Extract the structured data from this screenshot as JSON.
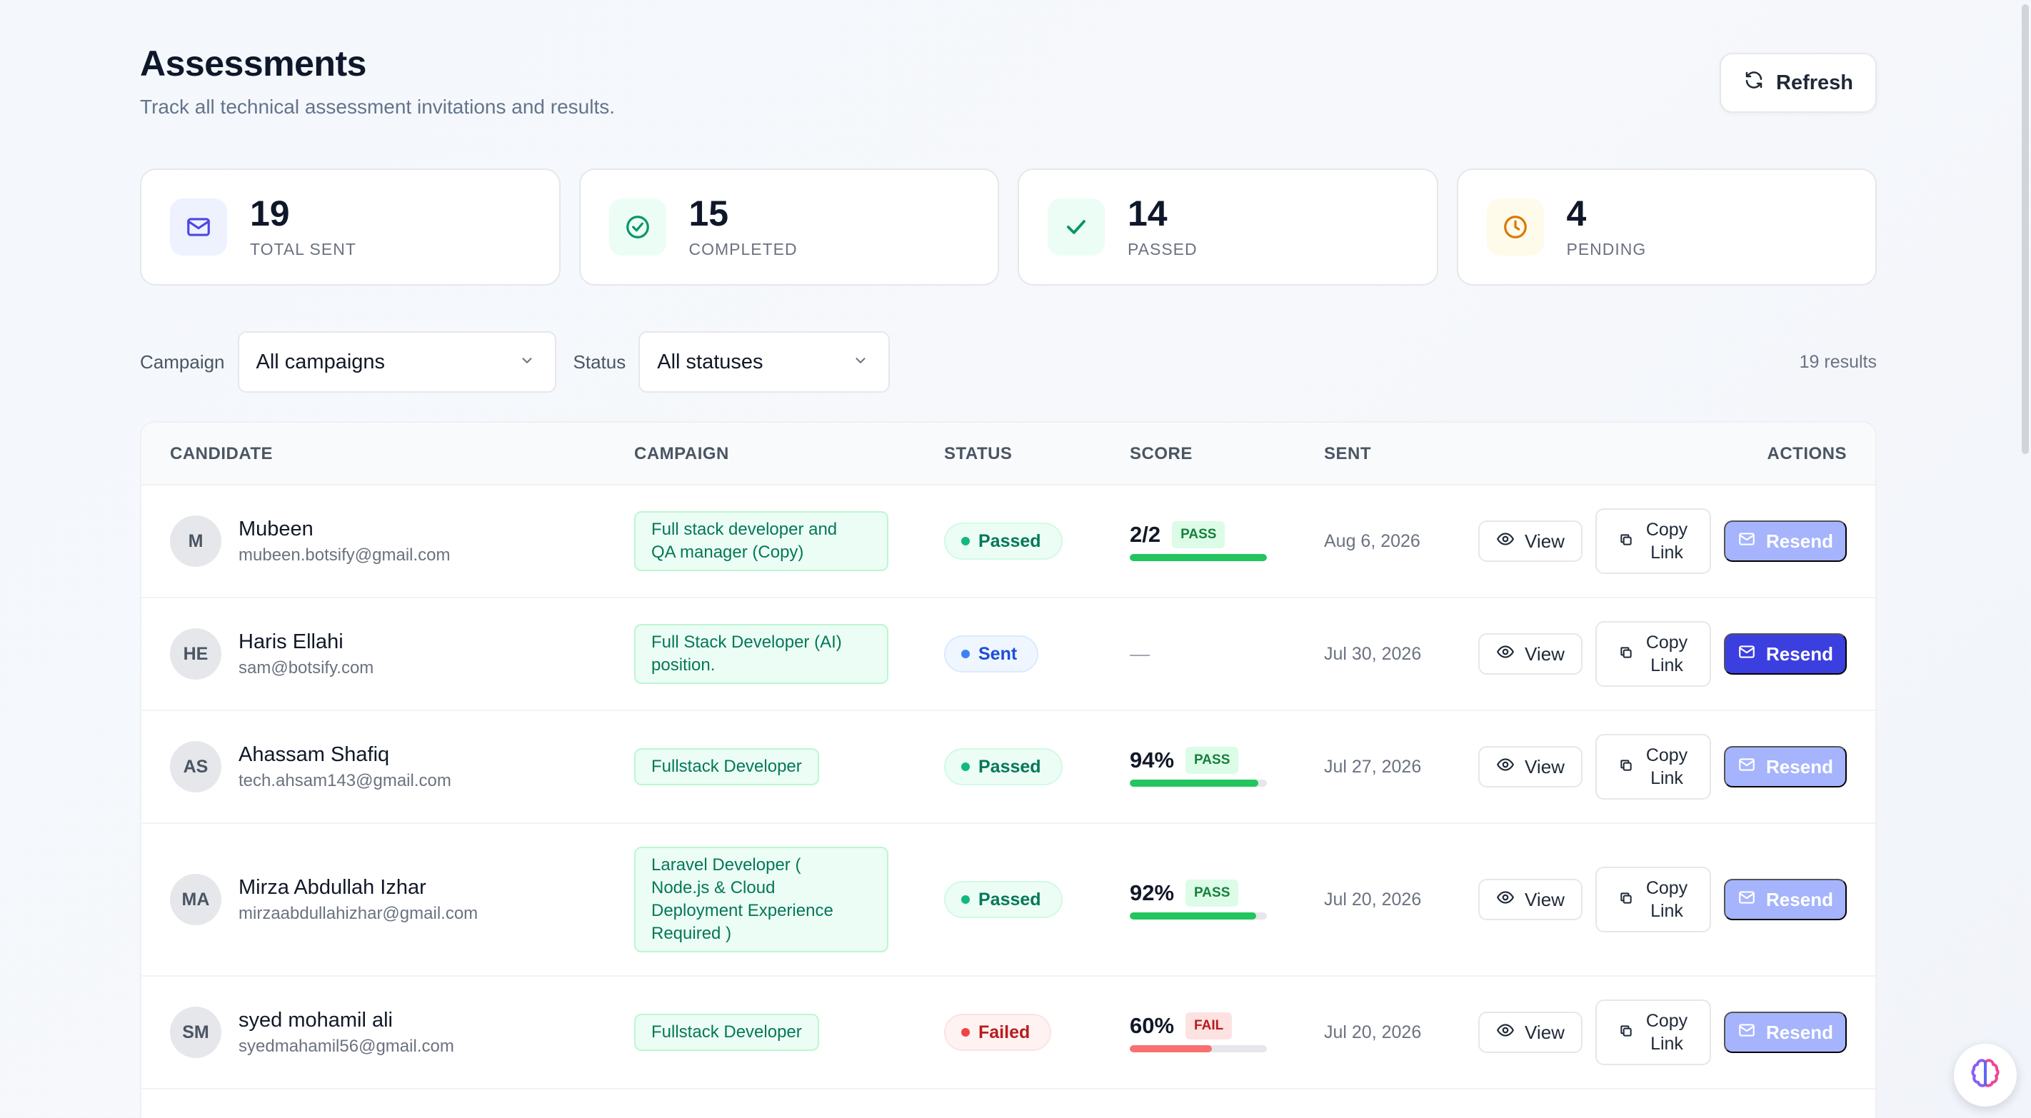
{
  "header": {
    "title": "Assessments",
    "subtitle": "Track all technical assessment invitations and results.",
    "refresh_label": "Refresh"
  },
  "stats": [
    {
      "value": "19",
      "label": "TOTAL SENT",
      "icon": "mail-icon",
      "color": "#4f46e5",
      "bg": "#eef2ff"
    },
    {
      "value": "15",
      "label": "COMPLETED",
      "icon": "check-circle-icon",
      "color": "#059669",
      "bg": "#ecfdf5"
    },
    {
      "value": "14",
      "label": "PASSED",
      "icon": "check-icon",
      "color": "#059669",
      "bg": "#ecfdf5"
    },
    {
      "value": "4",
      "label": "PENDING",
      "icon": "clock-icon",
      "color": "#d97706",
      "bg": "#fffbeb"
    }
  ],
  "filters": {
    "campaign_label": "Campaign",
    "campaign_value": "All campaigns",
    "status_label": "Status",
    "status_value": "All statuses",
    "results": "19 results"
  },
  "table": {
    "headers": {
      "candidate": "CANDIDATE",
      "campaign": "CAMPAIGN",
      "status": "STATUS",
      "score": "SCORE",
      "sent": "SENT",
      "actions": "ACTIONS"
    },
    "actions": {
      "view": "View",
      "copy_1": "Copy",
      "copy_2": "Link",
      "resend": "Resend"
    },
    "rows": [
      {
        "initials": "M",
        "name": "Mubeen",
        "email": "mubeen.botsify@gmail.com",
        "campaign_lines": [
          "Full stack developer and",
          "QA manager (Copy)"
        ],
        "status": "Passed",
        "score": "2/2",
        "badge": "PASS",
        "fill": 1.0,
        "sent": "Aug 6, 2026",
        "resend_active": false
      },
      {
        "initials": "HE",
        "name": "Haris Ellahi",
        "email": "sam@botsify.com",
        "campaign_lines": [
          "Full Stack Developer (AI)",
          "position."
        ],
        "status": "Sent",
        "score": "—",
        "badge": "",
        "fill": 0,
        "sent": "Jul 30, 2026",
        "resend_active": true
      },
      {
        "initials": "AS",
        "name": "Ahassam Shafiq",
        "email": "tech.ahsam143@gmail.com",
        "campaign_lines": [
          "Fullstack Developer"
        ],
        "status": "Passed",
        "score": "94%",
        "badge": "PASS",
        "fill": 0.94,
        "sent": "Jul 27, 2026",
        "resend_active": false
      },
      {
        "initials": "MA",
        "name": "Mirza Abdullah Izhar",
        "email": "mirzaabdullahizhar@gmail.com",
        "campaign_lines": [
          "Laravel Developer (",
          "Node.js & Cloud",
          "Deployment Experience",
          "Required )"
        ],
        "status": "Passed",
        "score": "92%",
        "badge": "PASS",
        "fill": 0.92,
        "sent": "Jul 20, 2026",
        "resend_active": false
      },
      {
        "initials": "SM",
        "name": "syed mohamil ali",
        "email": "syedmahamil56@gmail.com",
        "campaign_lines": [
          "Fullstack Developer"
        ],
        "status": "Failed",
        "score": "60%",
        "badge": "FAIL",
        "fill": 0.6,
        "sent": "Jul 20, 2026",
        "resend_active": false
      }
    ]
  }
}
